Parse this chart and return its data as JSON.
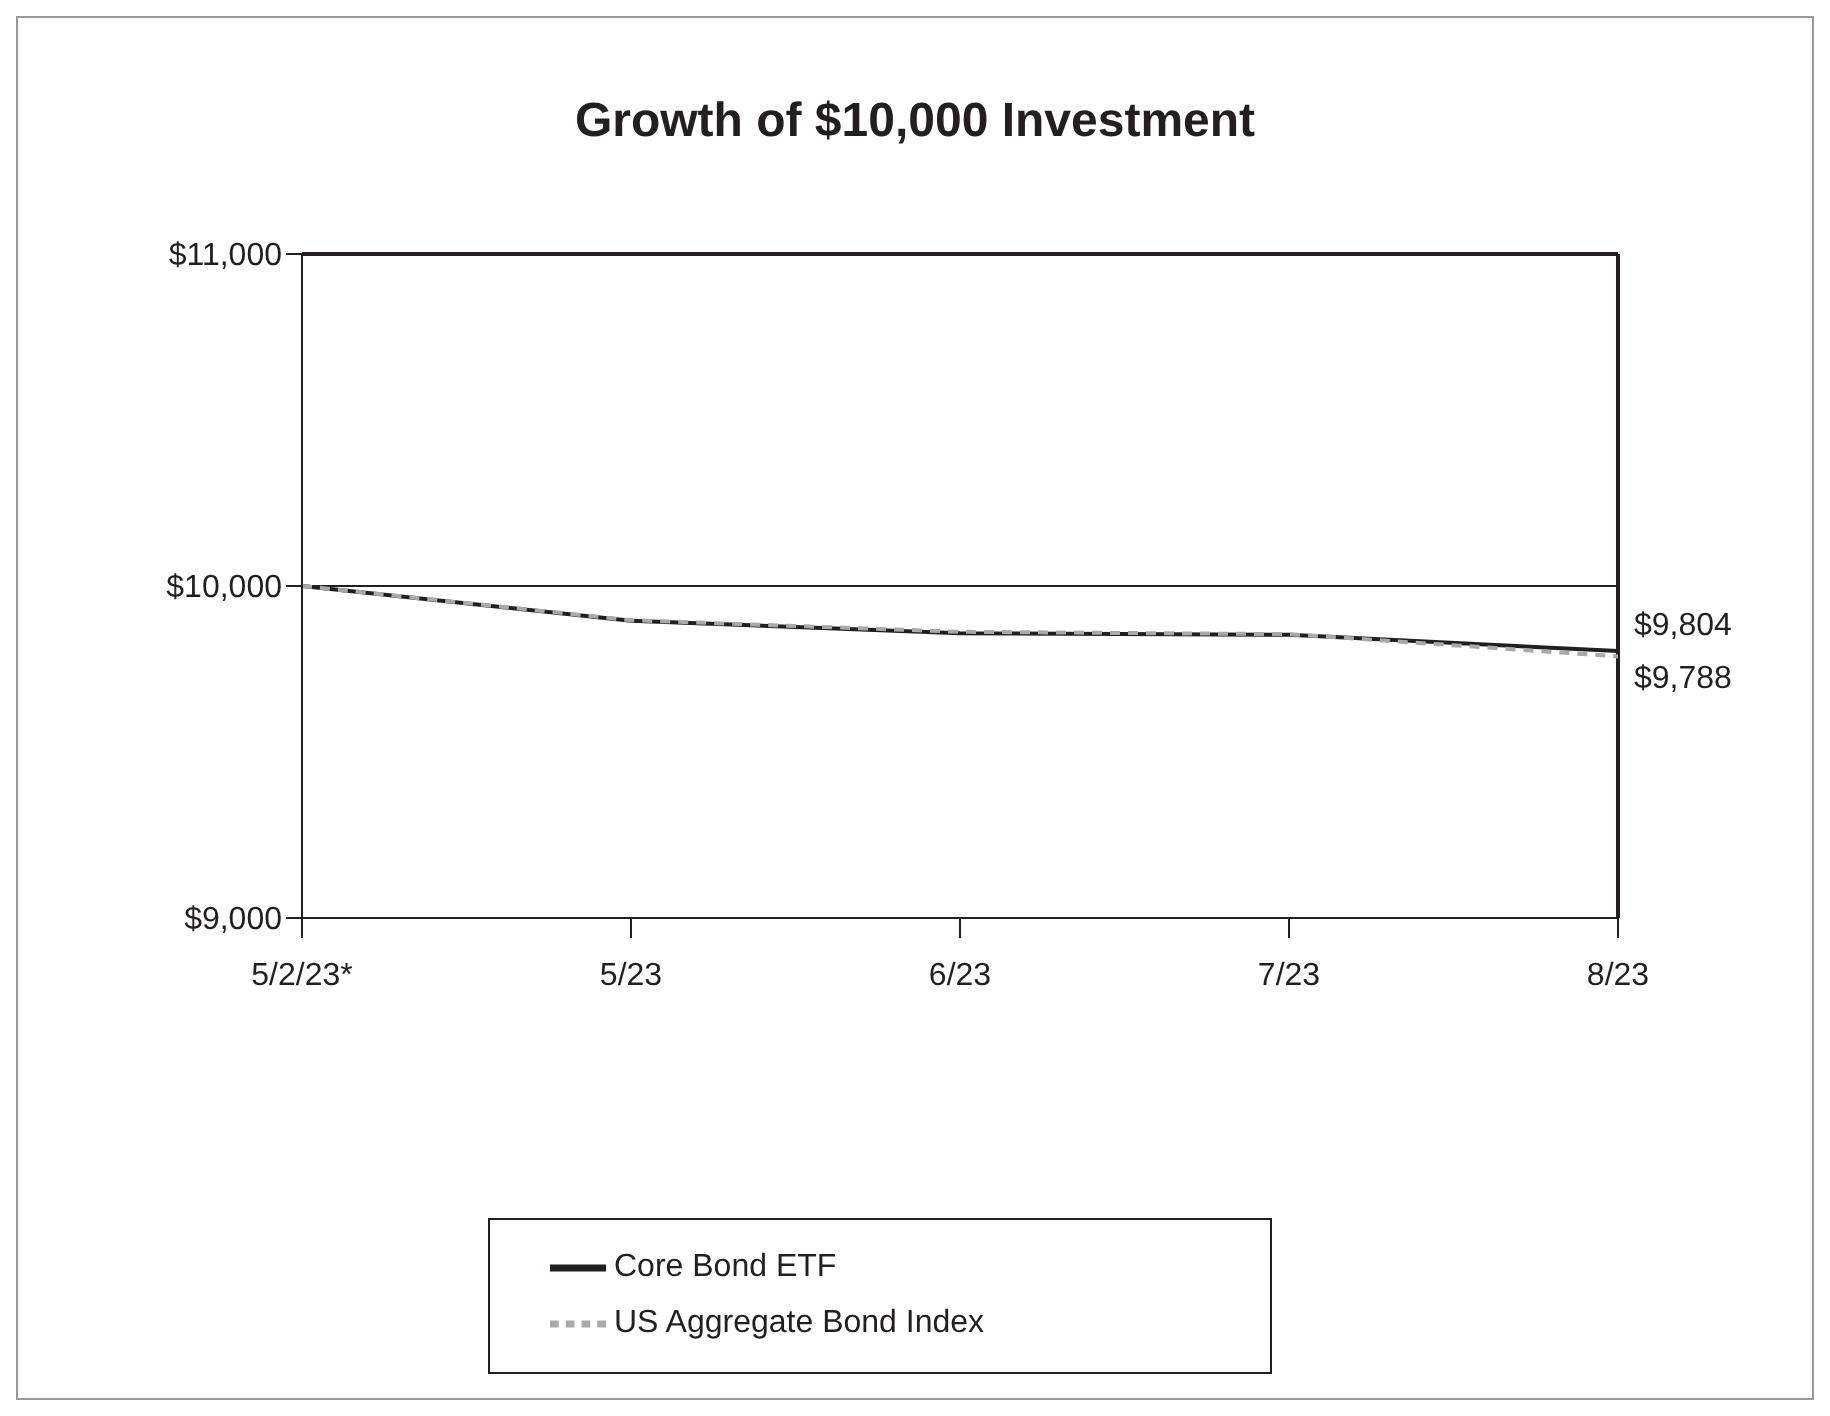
{
  "chart_data": {
    "type": "line",
    "title": "Growth of $10,000 Investment",
    "categories": [
      "5/2/23*",
      "5/23",
      "6/23",
      "7/23",
      "8/23"
    ],
    "ylim": [
      9000,
      11000
    ],
    "yticks": [
      {
        "value": 9000,
        "label": "$9,000"
      },
      {
        "value": 10000,
        "label": "$10,000"
      },
      {
        "value": 11000,
        "label": "$11,000"
      }
    ],
    "grid": "y",
    "legend": "bottom",
    "marker": "none",
    "series": [
      {
        "name": "Core Bond ETF",
        "color": "#231f20",
        "line_style": "solid",
        "values": [
          10000,
          9895,
          9858,
          9853,
          9804
        ],
        "value_labels": [
          null,
          null,
          null,
          null,
          "$9,804"
        ]
      },
      {
        "name": "US Aggregate Bond Index",
        "color": "#a7a9ac",
        "line_style": "dashed",
        "values": [
          10000,
          9897,
          9862,
          9855,
          9788
        ],
        "value_labels": [
          null,
          null,
          null,
          null,
          "$9,788"
        ]
      }
    ]
  }
}
